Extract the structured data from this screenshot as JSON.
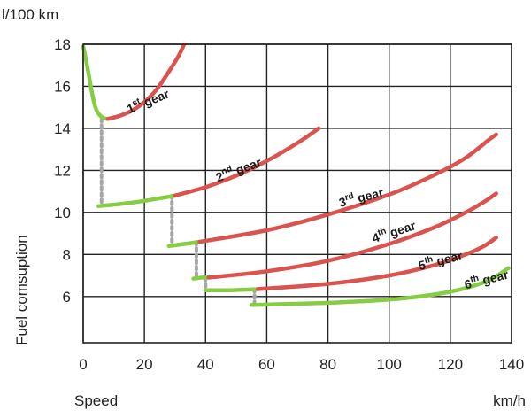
{
  "chart_data": {
    "type": "line",
    "xlabel": "Speed",
    "xunit": "km/h",
    "ylabel": "Fuel comsuption",
    "yunit": "l/100 km",
    "xlim": [
      0,
      140
    ],
    "ylim": [
      3.8,
      18
    ],
    "xticks": [
      "0",
      "20",
      "40",
      "60",
      "80",
      "100",
      "120",
      "140"
    ],
    "yticks": [
      "6",
      "8",
      "10",
      "12",
      "14",
      "16",
      "18"
    ],
    "grid": true,
    "colors": {
      "efficient": "#88cc44",
      "inefficient": "#d9534f",
      "shift": "#a6a6a6",
      "grid": "#222222"
    },
    "series": [
      {
        "name": "1st gear",
        "ordinal": "1",
        "suffix": "st",
        "label": "gear",
        "green": [
          [
            0,
            17.9
          ],
          [
            1,
            17.2
          ],
          [
            2,
            16.4
          ],
          [
            3,
            15.6
          ],
          [
            4,
            15.0
          ],
          [
            5,
            14.7
          ],
          [
            6.5,
            14.5
          ],
          [
            8,
            14.45
          ]
        ],
        "red": [
          [
            8,
            14.45
          ],
          [
            12,
            14.6
          ],
          [
            16,
            14.85
          ],
          [
            20,
            15.25
          ],
          [
            24,
            15.85
          ],
          [
            28,
            16.7
          ],
          [
            31,
            17.4
          ],
          [
            33,
            18.0
          ]
        ]
      },
      {
        "name": "2nd gear",
        "ordinal": "2",
        "suffix": "nd",
        "label": "gear",
        "green": [
          [
            5,
            10.3
          ],
          [
            12,
            10.4
          ],
          [
            20,
            10.55
          ],
          [
            28,
            10.75
          ],
          [
            30,
            10.8
          ]
        ],
        "red": [
          [
            30,
            10.8
          ],
          [
            40,
            11.2
          ],
          [
            50,
            11.75
          ],
          [
            60,
            12.45
          ],
          [
            70,
            13.3
          ],
          [
            77,
            14.0
          ]
        ]
      },
      {
        "name": "3rd gear",
        "ordinal": "3",
        "suffix": "rd",
        "label": "gear",
        "green": [
          [
            28,
            8.4
          ],
          [
            33,
            8.5
          ],
          [
            38,
            8.6
          ]
        ],
        "red": [
          [
            38,
            8.6
          ],
          [
            60,
            9.15
          ],
          [
            80,
            9.9
          ],
          [
            100,
            10.85
          ],
          [
            115,
            11.8
          ],
          [
            125,
            12.6
          ],
          [
            133,
            13.5
          ],
          [
            135,
            13.7
          ]
        ]
      },
      {
        "name": "4th gear",
        "ordinal": "4",
        "suffix": "th",
        "label": "gear",
        "green": [
          [
            36,
            6.85
          ],
          [
            39,
            6.9
          ],
          [
            41,
            6.9
          ]
        ],
        "red": [
          [
            41,
            6.9
          ],
          [
            60,
            7.2
          ],
          [
            80,
            7.7
          ],
          [
            100,
            8.5
          ],
          [
            115,
            9.3
          ],
          [
            125,
            10.0
          ],
          [
            131,
            10.5
          ],
          [
            135,
            10.9
          ]
        ]
      },
      {
        "name": "5th gear",
        "ordinal": "5",
        "suffix": "th",
        "label": "gear",
        "green": [
          [
            40,
            6.3
          ],
          [
            48,
            6.3
          ],
          [
            57,
            6.35
          ]
        ],
        "red": [
          [
            57,
            6.35
          ],
          [
            80,
            6.6
          ],
          [
            100,
            7.0
          ],
          [
            115,
            7.5
          ],
          [
            125,
            8.0
          ],
          [
            131,
            8.4
          ],
          [
            135,
            8.8
          ]
        ]
      },
      {
        "name": "6th gear",
        "ordinal": "6",
        "suffix": "th",
        "label": "gear",
        "green": [
          [
            55,
            5.6
          ],
          [
            80,
            5.7
          ],
          [
            100,
            5.85
          ],
          [
            115,
            6.1
          ],
          [
            125,
            6.4
          ],
          [
            133,
            6.8
          ],
          [
            139,
            7.35
          ]
        ],
        "red": []
      }
    ],
    "shifts": [
      [
        [
          6,
          14.45
        ],
        [
          6,
          10.35
        ]
      ],
      [
        [
          29,
          10.8
        ],
        [
          29,
          8.45
        ]
      ],
      [
        [
          37,
          8.6
        ],
        [
          37,
          6.9
        ]
      ],
      [
        [
          40,
          6.9
        ],
        [
          40,
          6.3
        ]
      ],
      [
        [
          56,
          6.35
        ],
        [
          56,
          5.65
        ]
      ]
    ],
    "label_positions": [
      [
        15,
        14.7
      ],
      [
        44,
        11.45
      ],
      [
        84,
        10.25
      ],
      [
        95,
        8.55
      ],
      [
        110,
        7.25
      ],
      [
        125,
        6.35
      ]
    ],
    "label_rotations": [
      -22,
      -20,
      -14,
      -18,
      -14,
      -14
    ]
  }
}
